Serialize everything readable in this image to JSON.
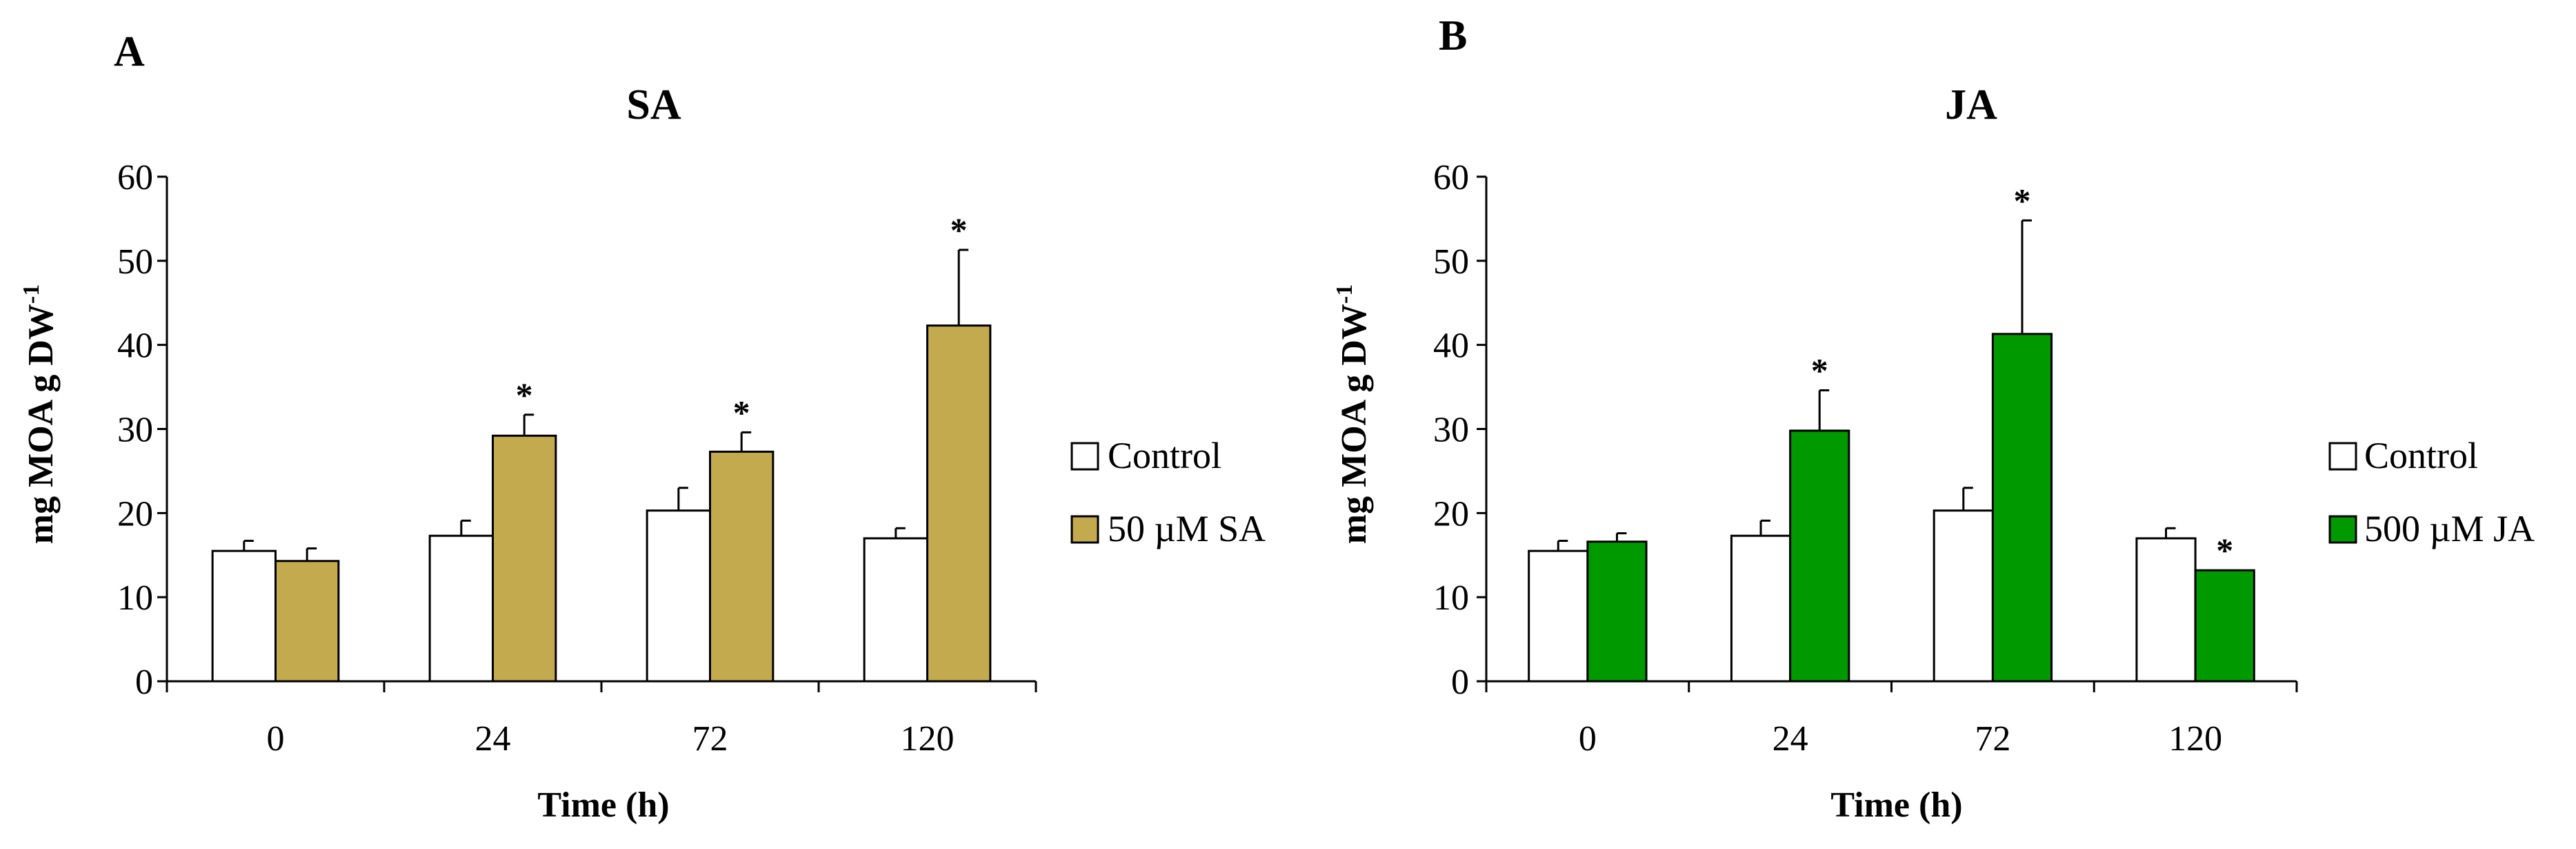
{
  "chart_data": [
    {
      "panel_label": "A",
      "type": "bar",
      "title": "SA",
      "xlabel": "Time (h)",
      "ylabel_main": "mg MOA g DW",
      "ylabel_sup": "-1",
      "categories": [
        "0",
        "24",
        "72",
        "120"
      ],
      "ylim": [
        0,
        60
      ],
      "yticks": [
        0,
        10,
        20,
        30,
        40,
        50,
        60
      ],
      "series": [
        {
          "name": "Control",
          "color": "#ffffff",
          "values": [
            15.5,
            17.3,
            20.3,
            17.0
          ],
          "errors": [
            1.2,
            1.8,
            2.7,
            1.2
          ],
          "significant": [
            false,
            false,
            false,
            false
          ]
        },
        {
          "name": "50 µM SA",
          "color": "#c4aa4f",
          "values": [
            14.3,
            29.2,
            27.3,
            42.3
          ],
          "errors": [
            1.5,
            2.5,
            2.3,
            9.0
          ],
          "significant": [
            false,
            true,
            true,
            true
          ]
        }
      ],
      "significance_marker": "*"
    },
    {
      "panel_label": "B",
      "type": "bar",
      "title": "JA",
      "xlabel": "Time (h)",
      "ylabel_main": "mg MOA g DW",
      "ylabel_sup": "-1",
      "categories": [
        "0",
        "24",
        "72",
        "120"
      ],
      "ylim": [
        0,
        60
      ],
      "yticks": [
        0,
        10,
        20,
        30,
        40,
        50,
        60
      ],
      "series": [
        {
          "name": "Control",
          "color": "#ffffff",
          "values": [
            15.5,
            17.3,
            20.3,
            17.0
          ],
          "errors": [
            1.2,
            1.8,
            2.7,
            1.2
          ],
          "significant": [
            false,
            false,
            false,
            false
          ]
        },
        {
          "name": "500 µM JA",
          "color": "#009900",
          "values": [
            16.6,
            29.8,
            41.3,
            13.2
          ],
          "errors": [
            1.0,
            4.8,
            13.5,
            0.0
          ],
          "significant": [
            false,
            true,
            true,
            true
          ]
        }
      ],
      "significance_marker": "*"
    }
  ]
}
